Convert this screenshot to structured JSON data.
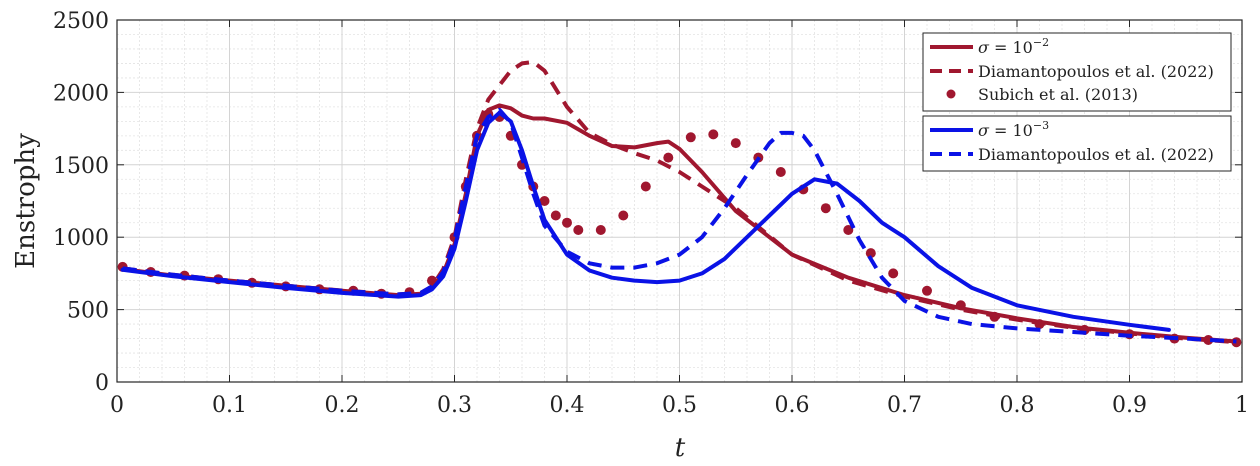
{
  "chart_data": {
    "type": "line",
    "xlabel": "t",
    "ylabel": "Enstrophy",
    "xlim": [
      0,
      1
    ],
    "ylim": [
      0,
      2500
    ],
    "xticks": [
      "0",
      "0.1",
      "0.2",
      "0.3",
      "0.4",
      "0.5",
      "0.6",
      "0.7",
      "0.8",
      "0.9",
      "1"
    ],
    "yticks": [
      "0",
      "500",
      "1000",
      "1500",
      "2000",
      "2500"
    ],
    "grid": "major and minor",
    "legend_position": "top-right, two boxes",
    "colors": {
      "red": "#a0172f",
      "blue": "#0a12e6"
    },
    "series": [
      {
        "name": "σ = 10^-2",
        "style": "solid",
        "color": "#a0172f",
        "x": [
          0.005,
          0.05,
          0.1,
          0.15,
          0.2,
          0.25,
          0.27,
          0.28,
          0.29,
          0.3,
          0.31,
          0.32,
          0.33,
          0.34,
          0.35,
          0.36,
          0.37,
          0.38,
          0.4,
          0.42,
          0.44,
          0.46,
          0.48,
          0.49,
          0.5,
          0.52,
          0.55,
          0.6,
          0.65,
          0.7,
          0.75,
          0.8,
          0.85,
          0.9,
          0.95,
          0.995
        ],
        "y": [
          780,
          735,
          700,
          665,
          630,
          600,
          610,
          650,
          750,
          950,
          1300,
          1700,
          1880,
          1910,
          1890,
          1840,
          1820,
          1820,
          1790,
          1700,
          1630,
          1620,
          1650,
          1660,
          1610,
          1450,
          1180,
          880,
          720,
          600,
          510,
          440,
          380,
          340,
          305,
          280
        ]
      },
      {
        "name": "Diamantopoulos et al. (2022)",
        "style": "dashed",
        "color": "#a0172f",
        "x": [
          0.005,
          0.05,
          0.1,
          0.15,
          0.2,
          0.25,
          0.27,
          0.28,
          0.29,
          0.3,
          0.31,
          0.32,
          0.33,
          0.34,
          0.35,
          0.36,
          0.37,
          0.38,
          0.4,
          0.42,
          0.44,
          0.46,
          0.48,
          0.5,
          0.52,
          0.55,
          0.6,
          0.65,
          0.7,
          0.75,
          0.8,
          0.85,
          0.9,
          0.95,
          0.995
        ],
        "y": [
          785,
          740,
          700,
          665,
          632,
          605,
          615,
          660,
          780,
          1000,
          1400,
          1750,
          1950,
          2050,
          2150,
          2200,
          2210,
          2150,
          1900,
          1720,
          1640,
          1580,
          1530,
          1450,
          1350,
          1200,
          880,
          700,
          590,
          500,
          430,
          375,
          335,
          300,
          275
        ]
      },
      {
        "name": "Subich et al. (2013)",
        "style": "dots",
        "color": "#a0172f",
        "x": [
          0.005,
          0.03,
          0.06,
          0.09,
          0.12,
          0.15,
          0.18,
          0.21,
          0.235,
          0.26,
          0.28,
          0.3,
          0.31,
          0.32,
          0.33,
          0.34,
          0.35,
          0.36,
          0.37,
          0.38,
          0.39,
          0.4,
          0.41,
          0.43,
          0.45,
          0.47,
          0.49,
          0.51,
          0.53,
          0.55,
          0.57,
          0.59,
          0.61,
          0.63,
          0.65,
          0.67,
          0.69,
          0.72,
          0.75,
          0.78,
          0.82,
          0.86,
          0.9,
          0.94,
          0.97,
          0.995
        ],
        "y": [
          795,
          760,
          735,
          710,
          685,
          660,
          640,
          630,
          610,
          620,
          700,
          1000,
          1350,
          1700,
          1850,
          1830,
          1700,
          1500,
          1350,
          1250,
          1150,
          1100,
          1050,
          1050,
          1150,
          1350,
          1550,
          1690,
          1710,
          1650,
          1550,
          1450,
          1330,
          1200,
          1050,
          890,
          750,
          630,
          530,
          450,
          400,
          360,
          330,
          300,
          290,
          275
        ]
      },
      {
        "name": "σ = 10^-3",
        "style": "solid",
        "color": "#0a12e6",
        "x": [
          0.005,
          0.05,
          0.1,
          0.15,
          0.2,
          0.25,
          0.27,
          0.28,
          0.29,
          0.3,
          0.31,
          0.32,
          0.33,
          0.34,
          0.35,
          0.36,
          0.37,
          0.38,
          0.4,
          0.42,
          0.44,
          0.46,
          0.48,
          0.5,
          0.52,
          0.54,
          0.56,
          0.58,
          0.6,
          0.62,
          0.64,
          0.66,
          0.68,
          0.7,
          0.73,
          0.76,
          0.8,
          0.85,
          0.9,
          0.935
        ],
        "y": [
          775,
          730,
          690,
          650,
          615,
          590,
          600,
          640,
          730,
          920,
          1250,
          1600,
          1790,
          1860,
          1800,
          1600,
          1350,
          1120,
          880,
          770,
          720,
          700,
          690,
          700,
          750,
          850,
          1000,
          1150,
          1300,
          1400,
          1370,
          1250,
          1100,
          1000,
          800,
          650,
          530,
          450,
          395,
          360
        ]
      },
      {
        "name": "Diamantopoulos et al. (2022)",
        "style": "dashed",
        "color": "#0a12e6",
        "x": [
          0.005,
          0.05,
          0.1,
          0.15,
          0.2,
          0.25,
          0.27,
          0.28,
          0.29,
          0.3,
          0.31,
          0.32,
          0.33,
          0.34,
          0.35,
          0.36,
          0.37,
          0.38,
          0.4,
          0.42,
          0.44,
          0.46,
          0.48,
          0.5,
          0.52,
          0.54,
          0.56,
          0.58,
          0.59,
          0.6,
          0.61,
          0.62,
          0.64,
          0.66,
          0.68,
          0.7,
          0.73,
          0.76,
          0.8,
          0.85,
          0.9,
          0.95,
          0.995
        ],
        "y": [
          785,
          740,
          700,
          665,
          630,
          605,
          615,
          660,
          760,
          980,
          1350,
          1700,
          1830,
          1880,
          1790,
          1550,
          1300,
          1080,
          900,
          820,
          790,
          790,
          820,
          880,
          1000,
          1200,
          1430,
          1650,
          1720,
          1720,
          1700,
          1600,
          1300,
          980,
          720,
          560,
          450,
          400,
          370,
          345,
          320,
          300,
          280
        ]
      }
    ]
  }
}
